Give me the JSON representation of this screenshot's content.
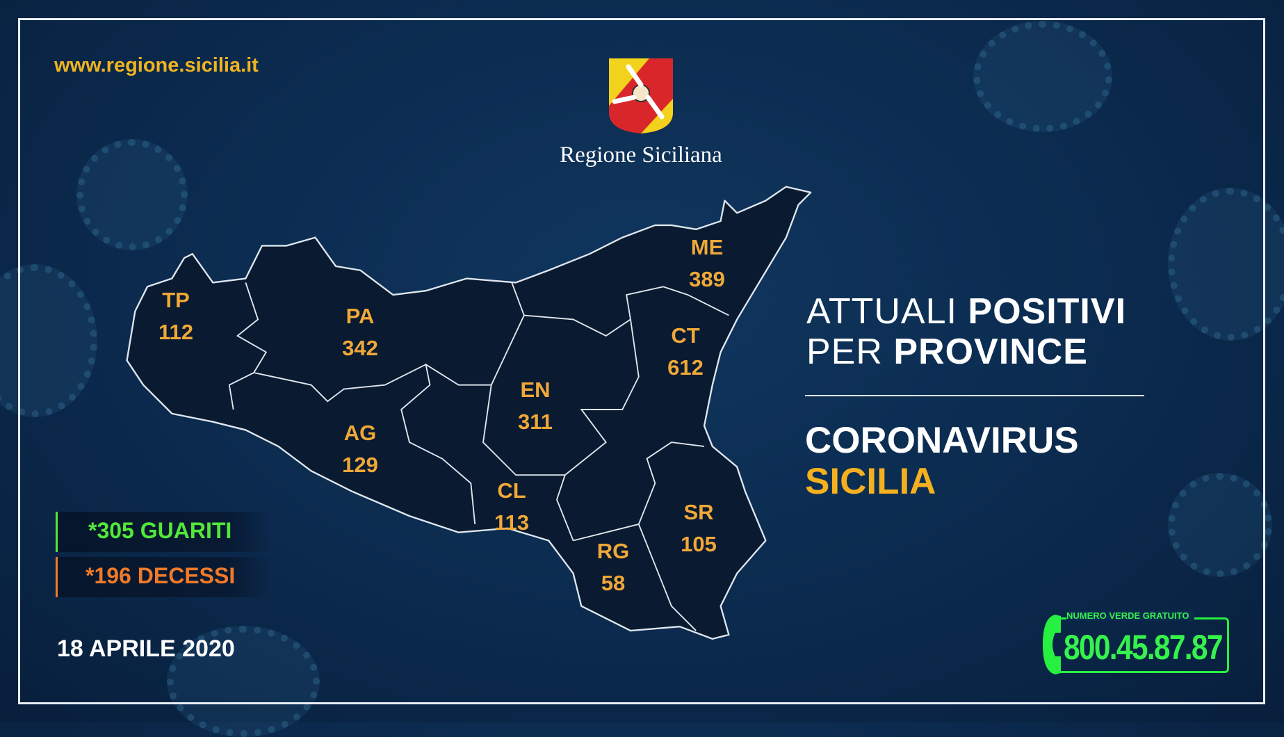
{
  "website": "www.regione.sicilia.it",
  "logo": {
    "name": "Regione Siciliana",
    "icon": "trinacria-emblem"
  },
  "provinces": [
    {
      "code": "TP",
      "value": "112"
    },
    {
      "code": "PA",
      "value": "342"
    },
    {
      "code": "ME",
      "value": "389"
    },
    {
      "code": "CT",
      "value": "612"
    },
    {
      "code": "EN",
      "value": "311"
    },
    {
      "code": "AG",
      "value": "129"
    },
    {
      "code": "CL",
      "value": "113"
    },
    {
      "code": "SR",
      "value": "105"
    },
    {
      "code": "RG",
      "value": "58"
    }
  ],
  "heading": {
    "line1_light": "ATTUALI ",
    "line1_bold": "POSITIVI",
    "line2_light": "PER ",
    "line2_bold": "PROVINCE"
  },
  "subheading": {
    "line1": "CORONAVIRUS",
    "line2": "SICILIA"
  },
  "stats": {
    "recovered": "*305 GUARITI",
    "deaths": "*196 DECESSI"
  },
  "date": "18 APRILE 2020",
  "hotline": {
    "label": "NUMERO VERDE GRATUITO",
    "number": "800.45.87.87"
  },
  "colors": {
    "background": "#0b2a4e",
    "accent_orange": "#f0a838",
    "accent_yellow": "#f5b020",
    "green": "#35f24c",
    "deaths_orange": "#f07a28",
    "map_fill": "#0a1a30"
  }
}
